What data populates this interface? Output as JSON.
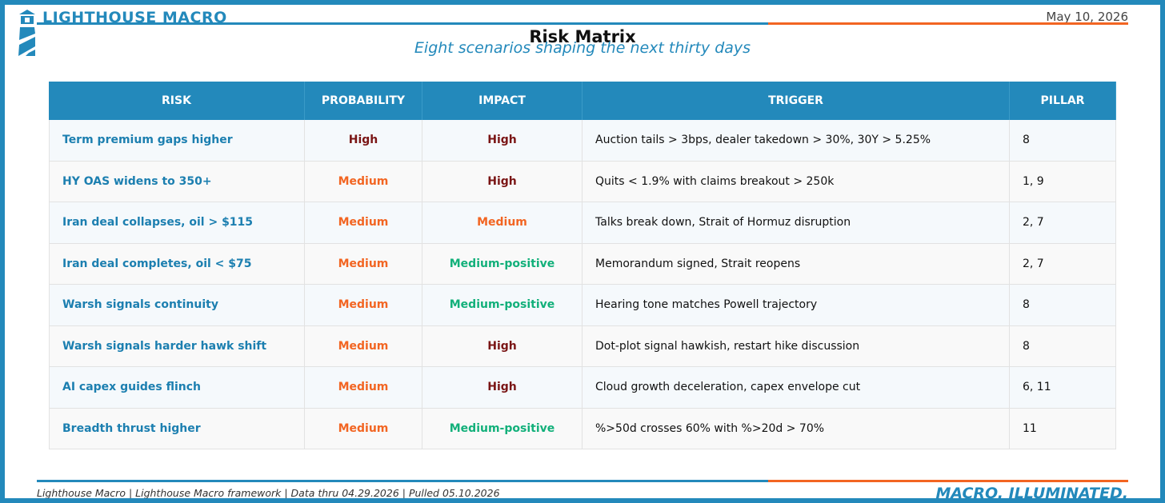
{
  "header": {
    "brand": "LIGHTHOUSE MACRO",
    "date": "May 10, 2026",
    "title": "Risk Matrix",
    "subtitle": "Eight scenarios shaping the next thirty days"
  },
  "table": {
    "columns": [
      "RISK",
      "PROBABILITY",
      "IMPACT",
      "TRIGGER",
      "PILLAR"
    ],
    "rows": [
      [
        "Term premium gaps higher",
        "High",
        "High",
        "Auction tails > 3bps, dealer takedown > 30%, 30Y > 5.25%",
        "8"
      ],
      [
        "HY OAS widens to 350+",
        "Medium",
        "High",
        "Quits < 1.9% with claims breakout > 250k",
        "1, 9"
      ],
      [
        "Iran deal collapses, oil > $115",
        "Medium",
        "Medium",
        "Talks break down, Strait of Hormuz disruption",
        "2, 7"
      ],
      [
        "Iran deal completes, oil < $75",
        "Medium",
        "Medium-positive",
        "Memorandum signed, Strait reopens",
        "2, 7"
      ],
      [
        "Warsh signals continuity",
        "Medium",
        "Medium-positive",
        "Hearing tone matches Powell trajectory",
        "8"
      ],
      [
        "Warsh signals harder hawk shift",
        "Medium",
        "High",
        "Dot-plot signal hawkish, restart hike discussion",
        "8"
      ],
      [
        "AI capex guides flinch",
        "Medium",
        "High",
        "Cloud growth deceleration, capex envelope cut",
        "6, 11"
      ],
      [
        "Breadth thrust higher",
        "Medium",
        "Medium-positive",
        "%>50d crosses 60% with %>20d > 70%",
        "11"
      ]
    ],
    "level_colors": {
      "High": "#7a1515",
      "Medium": "#f26522",
      "Medium-positive": "#12b07a"
    }
  },
  "footer": {
    "source": "Lighthouse Macro | Lighthouse Macro framework | Data thru 04.29.2026 | Pulled 05.10.2026",
    "tagline": "MACRO. ILLUMINATED."
  }
}
